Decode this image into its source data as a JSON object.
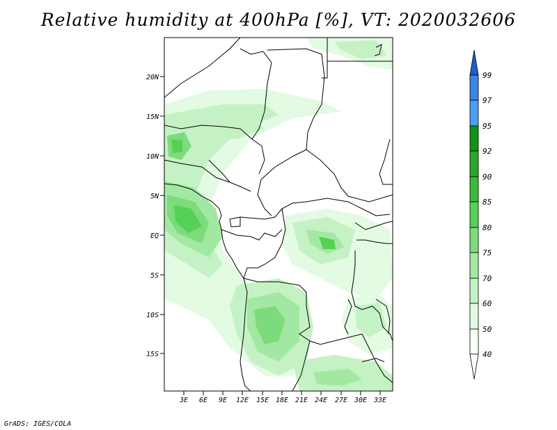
{
  "title": "Relative humidity at 400hPa [%], VT: 2020032606",
  "credit": "GrADS: IGES/COLA",
  "map": {
    "lat_labels": [
      "20N",
      "15N",
      "10N",
      "5N",
      "EQ",
      "5S",
      "10S",
      "15S"
    ],
    "lon_labels": [
      "3E",
      "6E",
      "9E",
      "12E",
      "15E",
      "18E",
      "21E",
      "24E",
      "27E",
      "30E",
      "33E"
    ]
  },
  "colorbar": {
    "labels": [
      "99",
      "97",
      "95",
      "92",
      "90",
      "85",
      "80",
      "75",
      "70",
      "60",
      "50",
      "40"
    ],
    "colors": {
      "c99": "#1c5fc8",
      "c97": "#3b85e5",
      "c95": "#4c9ef2",
      "c92": "#119210",
      "c90": "#2aa62a",
      "c85": "#3bbb3b",
      "c80": "#56d056",
      "c75": "#7cdc7c",
      "c70": "#a2e8a2",
      "c60": "#c4f2c4",
      "c50": "#e3fae3",
      "c40": "#f6fff6"
    }
  }
}
